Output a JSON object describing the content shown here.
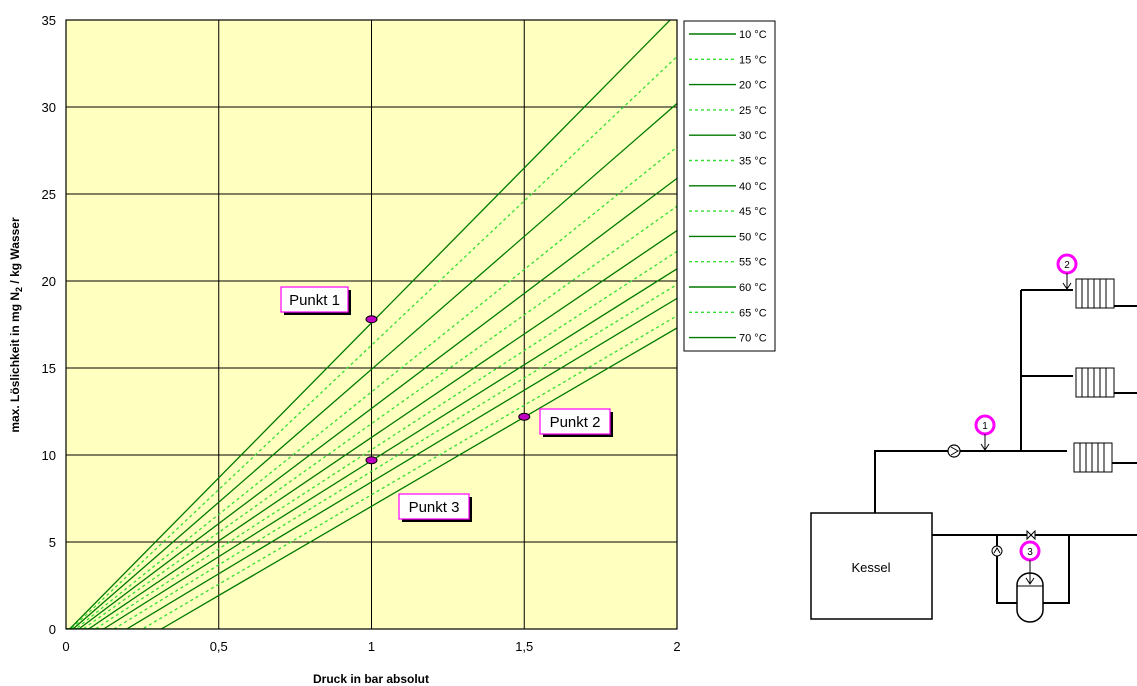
{
  "chart_data": {
    "type": "line",
    "xlabel": "Druck in bar absolut",
    "ylabel_main": "max. Löslichkeit in mg N",
    "ylabel_sub": "2",
    "ylabel_tail": " / kg Wasser",
    "xlim": [
      0,
      2
    ],
    "ylim": [
      0,
      35
    ],
    "xticks": [
      0,
      0.5,
      1,
      1.5,
      2
    ],
    "xtick_labels": [
      "0",
      "0,5",
      "1",
      "1,5",
      "2"
    ],
    "yticks": [
      0,
      5,
      10,
      15,
      20,
      25,
      30,
      35
    ],
    "ytick_labels": [
      "0",
      "5",
      "10",
      "15",
      "20",
      "25",
      "30",
      "35"
    ],
    "grid": true,
    "legend_position": "right",
    "plot_background": "#ffffc0",
    "series_color": "#007a00",
    "series_color_dashed": "#33dd33",
    "series": [
      {
        "name": "10 °C",
        "style": "solid",
        "x": [
          0.012,
          2.0
        ],
        "y": [
          0,
          35.4
        ]
      },
      {
        "name": "15 °C",
        "style": "dashed",
        "x": [
          0.017,
          2.0
        ],
        "y": [
          0,
          32.9
        ]
      },
      {
        "name": "20 °C",
        "style": "solid",
        "x": [
          0.023,
          2.0
        ],
        "y": [
          0,
          30.2
        ]
      },
      {
        "name": "25 °C",
        "style": "dashed",
        "x": [
          0.032,
          2.0
        ],
        "y": [
          0,
          27.7
        ]
      },
      {
        "name": "30 °C",
        "style": "solid",
        "x": [
          0.042,
          2.0
        ],
        "y": [
          0,
          25.9
        ]
      },
      {
        "name": "35 °C",
        "style": "dashed",
        "x": [
          0.056,
          2.0
        ],
        "y": [
          0,
          24.3
        ]
      },
      {
        "name": "40 °C",
        "style": "solid",
        "x": [
          0.074,
          2.0
        ],
        "y": [
          0,
          22.9
        ]
      },
      {
        "name": "45 °C",
        "style": "dashed",
        "x": [
          0.096,
          2.0
        ],
        "y": [
          0,
          21.7
        ]
      },
      {
        "name": "50 °C",
        "style": "solid",
        "x": [
          0.123,
          2.0
        ],
        "y": [
          0,
          20.7
        ]
      },
      {
        "name": "55 °C",
        "style": "dashed",
        "x": [
          0.157,
          2.0
        ],
        "y": [
          0,
          19.8
        ]
      },
      {
        "name": "60 °C",
        "style": "solid",
        "x": [
          0.199,
          2.0
        ],
        "y": [
          0,
          19.0
        ]
      },
      {
        "name": "65 °C",
        "style": "dashed",
        "x": [
          0.25,
          2.0
        ],
        "y": [
          0,
          18.0
        ]
      },
      {
        "name": "70 °C",
        "style": "solid",
        "x": [
          0.312,
          2.0
        ],
        "y": [
          0,
          17.3
        ]
      }
    ],
    "points": [
      {
        "label": "Punkt 1",
        "x": 1.0,
        "y": 17.8
      },
      {
        "label": "Punkt 2",
        "x": 1.5,
        "y": 12.2
      },
      {
        "label": "Punkt 3",
        "x": 1.0,
        "y": 9.7
      }
    ],
    "point_color": "#c000c0"
  },
  "diagram": {
    "kessel_label": "Kessel",
    "markers": [
      "1",
      "2",
      "3"
    ],
    "marker_color": "#ff00ff"
  }
}
